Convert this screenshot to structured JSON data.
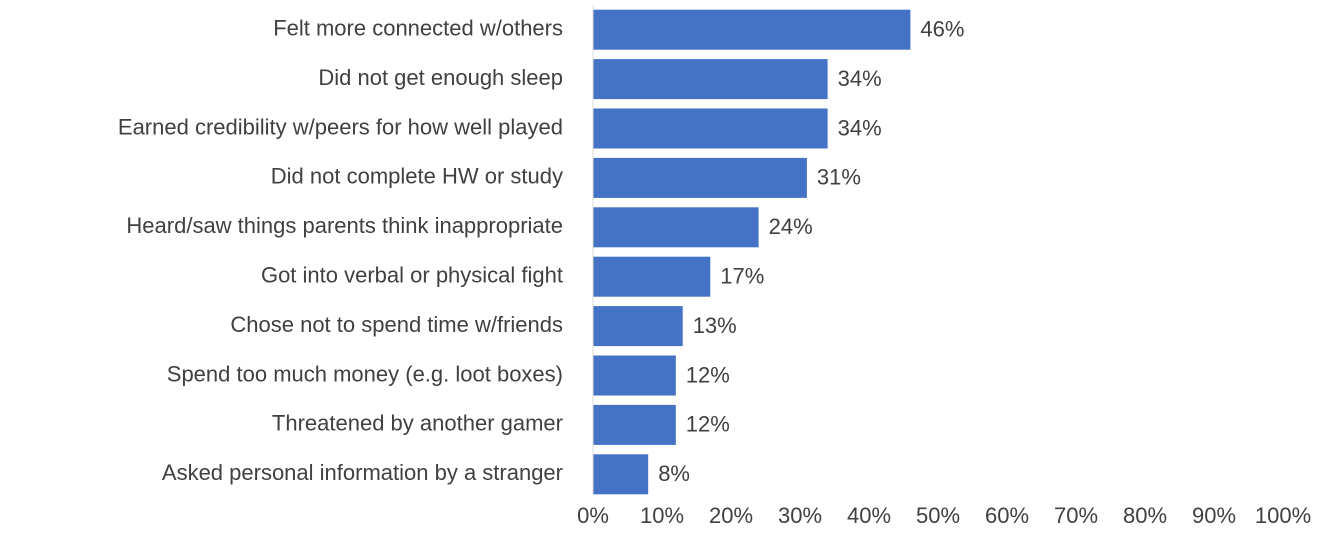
{
  "chart_data": {
    "type": "bar",
    "orientation": "horizontal",
    "categories": [
      "Felt more connected w/others",
      "Did not get enough sleep",
      "Earned credibility w/peers for how well played",
      "Did not complete HW or study",
      "Heard/saw things parents think inappropriate",
      "Got into verbal or physical fight",
      "Chose not to spend time w/friends",
      "Spend too much money (e.g. loot boxes)",
      "Threatened by another gamer",
      "Asked personal information by a stranger"
    ],
    "values": [
      46,
      34,
      34,
      31,
      24,
      17,
      13,
      12,
      12,
      8
    ],
    "value_labels": [
      "46%",
      "34%",
      "34%",
      "31%",
      "24%",
      "17%",
      "13%",
      "12%",
      "12%",
      "8%"
    ],
    "color": "#4472c4",
    "xlim": [
      0,
      100
    ],
    "xticks": [
      {
        "value": 0,
        "label": "0%"
      },
      {
        "value": 10,
        "label": "10%"
      },
      {
        "value": 20,
        "label": "20%"
      },
      {
        "value": 30,
        "label": "30%"
      },
      {
        "value": 40,
        "label": "40%"
      },
      {
        "value": 50,
        "label": "50%"
      },
      {
        "value": 60,
        "label": "60%"
      },
      {
        "value": 70,
        "label": "70%"
      },
      {
        "value": 80,
        "label": "80%"
      },
      {
        "value": 90,
        "label": "90%"
      },
      {
        "value": 100,
        "label": "100%"
      }
    ],
    "grid": false
  }
}
